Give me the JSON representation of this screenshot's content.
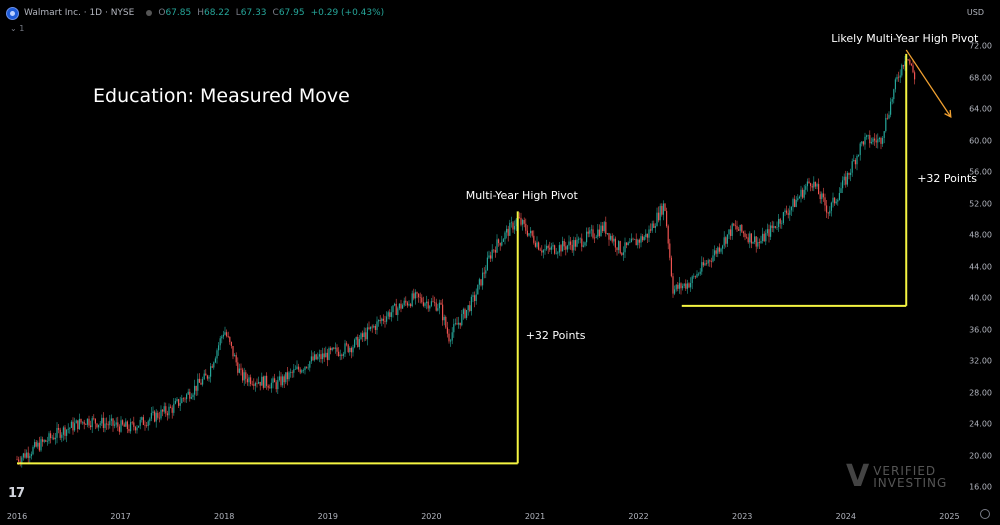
{
  "header": {
    "symbol": "Walmart Inc. · 1D · NYSE",
    "ohlc": [
      {
        "k": "O",
        "v": "67.85"
      },
      {
        "k": "H",
        "v": "68.22"
      },
      {
        "k": "L",
        "v": "67.33"
      },
      {
        "k": "C",
        "v": "67.95"
      }
    ],
    "change": "+0.29 (+0.43%)",
    "sub_label": "⌄ 1",
    "currency": "USD"
  },
  "chart_data": {
    "type": "candlestick",
    "title": "Education: Measured Move",
    "y_ticks": [
      "72.00",
      "68.00",
      "64.00",
      "60.00",
      "56.00",
      "52.00",
      "48.00",
      "44.00",
      "40.00",
      "36.00",
      "32.00",
      "28.00",
      "24.00",
      "20.00",
      "16.00"
    ],
    "x_ticks": [
      "2016",
      "2017",
      "2018",
      "2019",
      "2020",
      "2021",
      "2022",
      "2023",
      "2024",
      "2025"
    ],
    "ylim": [
      16,
      72
    ],
    "grid": false,
    "price_path": [
      {
        "date": "2016-01",
        "price": 19.5
      },
      {
        "date": "2016-06",
        "price": 23.0
      },
      {
        "date": "2016-09",
        "price": 24.5
      },
      {
        "date": "2017-02",
        "price": 23.5
      },
      {
        "date": "2017-07",
        "price": 26.0
      },
      {
        "date": "2017-11",
        "price": 30.0
      },
      {
        "date": "2018-01",
        "price": 36.0
      },
      {
        "date": "2018-03",
        "price": 30.0
      },
      {
        "date": "2018-07",
        "price": 29.0
      },
      {
        "date": "2018-11",
        "price": 32.0
      },
      {
        "date": "2019-04",
        "price": 34.0
      },
      {
        "date": "2019-08",
        "price": 38.0
      },
      {
        "date": "2019-11",
        "price": 40.0
      },
      {
        "date": "2020-02",
        "price": 39.0
      },
      {
        "date": "2020-03",
        "price": 35.0
      },
      {
        "date": "2020-06",
        "price": 40.0
      },
      {
        "date": "2020-08",
        "price": 46.0
      },
      {
        "date": "2020-11",
        "price": 50.0
      },
      {
        "date": "2021-02",
        "price": 46.0
      },
      {
        "date": "2021-06",
        "price": 47.0
      },
      {
        "date": "2021-09",
        "price": 49.0
      },
      {
        "date": "2021-11",
        "price": 46.0
      },
      {
        "date": "2022-02",
        "price": 48.0
      },
      {
        "date": "2022-04",
        "price": 52.0
      },
      {
        "date": "2022-05",
        "price": 41.0
      },
      {
        "date": "2022-07",
        "price": 42.0
      },
      {
        "date": "2022-10",
        "price": 46.0
      },
      {
        "date": "2022-12",
        "price": 49.0
      },
      {
        "date": "2023-03",
        "price": 47.0
      },
      {
        "date": "2023-07",
        "price": 52.0
      },
      {
        "date": "2023-09",
        "price": 55.0
      },
      {
        "date": "2023-11",
        "price": 51.0
      },
      {
        "date": "2024-01",
        "price": 55.0
      },
      {
        "date": "2024-03",
        "price": 60.0
      },
      {
        "date": "2024-05",
        "price": 60.0
      },
      {
        "date": "2024-07",
        "price": 68.0
      },
      {
        "date": "2024-08",
        "price": 71.0
      },
      {
        "date": "2024-09",
        "price": 68.0
      }
    ],
    "annotations": {
      "pivot1_label": "Multi-Year High Pivot",
      "pivot2_label": "Likely Multi-Year High Pivot",
      "move1_label": "+32 Points",
      "move2_label": "+32 Points",
      "move1": {
        "start_date": "2016-01",
        "pivot_date": "2020-11",
        "base_price": 19.0,
        "top_price": 51.0
      },
      "move2": {
        "start_date": "2022-06",
        "pivot_date": "2024-08",
        "base_price": 39.0,
        "top_price": 71.0
      },
      "projection": {
        "from_date": "2024-08",
        "from_price": 71.5,
        "to_date": "2024-12",
        "to_price": 63.0
      }
    }
  },
  "colors": {
    "up": "#26a69a",
    "down": "#ef5350",
    "measure_line": "#f5f542",
    "projection_arrow": "#f0a030",
    "background": "#000000"
  },
  "watermark": {
    "brand_top": "VERIFIED",
    "brand_bottom": "INVESTING",
    "tv_logo": "17"
  }
}
